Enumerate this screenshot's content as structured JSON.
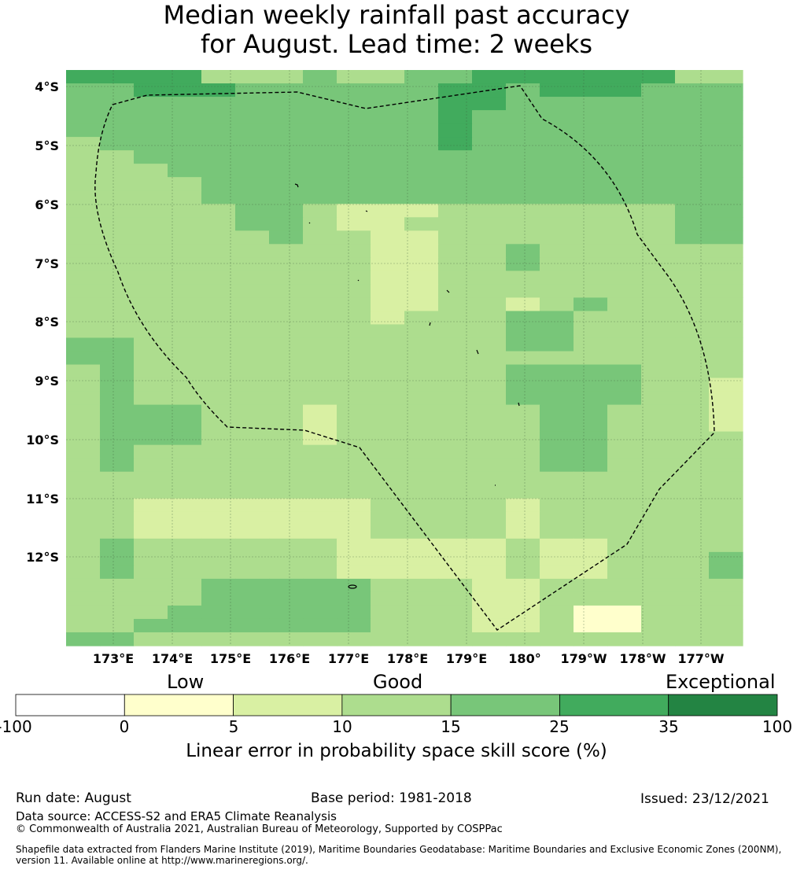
{
  "title_line1": "Median weekly rainfall past accuracy",
  "title_line2": "for August. Lead time: 2 weeks",
  "lat_labels": [
    "4°S",
    "5°S",
    "6°S",
    "7°S",
    "8°S",
    "9°S",
    "10°S",
    "11°S",
    "12°S"
  ],
  "lon_labels": [
    "173°E",
    "174°E",
    "175°E",
    "176°E",
    "177°E",
    "178°E",
    "179°E",
    "180°",
    "179°W",
    "178°W",
    "177°W"
  ],
  "legend": {
    "low": "Low",
    "good": "Good",
    "exceptional": "Exceptional",
    "ticks": [
      "-100",
      "0",
      "5",
      "10",
      "15",
      "25",
      "35",
      "100"
    ],
    "colors": [
      "#ffffff",
      "#ffffcc",
      "#d9f0a3",
      "#addd8e",
      "#78c679",
      "#41ab5d",
      "#238443"
    ],
    "title": "Linear error in probability space skill score (%)"
  },
  "footer": {
    "run_date": "Run date: August",
    "base_period": "Base period: 1981-2018",
    "issued": "Issued: 23/12/2021",
    "data_source": "Data source: ACCESS-S2 and ERA5 Climate Reanalysis",
    "copyright": "© Commonwealth of Australia 2021, Australian Bureau of Meteorology, Supported by COSPPac",
    "shapefile_line1": "Shapefile data extracted from Flanders Marine Institute (2019), Maritime Boundaries Geodatabase: Maritime Boundaries and Exclusive Economic Zones (200NM),",
    "shapefile_line2": "version 11. Available online at http://www.marineregions.org/."
  },
  "map": {
    "cell_key": "0=white(-100..0) 1=0..5 2=5..10 3=10..15 4=15..25 5=25..35 6=35..100",
    "grid": [
      "55553334334455555533",
      "44555444444554555444",
      "44444444444554444444",
      "44444444444544444444",
      "44444444444544444444",
      "34444444444544444444",
      "33444444444444444444",
      "33344444444444444444",
      "33334444444444444444",
      "33334444444444444444",
      "33333443222333333344",
      "33333443223333333344",
      "33333343322333333344",
      "33333333322334333333",
      "33333333322334333333",
      "33333333322333333333",
      "33333333322333333333",
      "33333333322332343333",
      "33333333323334433333",
      "33333333333334433333",
      "44333333333334433333",
      "44333333333333333333",
      "34333333333334444333",
      "34333333333334444332",
      "34333333333334444332",
      "34443332333333443332",
      "34443332333333443332",
      "34443332333333443333",
      "34333333333333443333",
      "34333333333333443333",
      "33333333333333333333",
      "33333333333333333333",
      "33222222233332333333",
      "33222222233332333333",
      "33222222233332333333",
      "34333333222223223333",
      "34333333222223223334",
      "34333333222223223334",
      "33334444433322333333",
      "33334444433322333333",
      "33344444433322311333",
      "33444444433322311333",
      "44333333333333333333"
    ]
  }
}
